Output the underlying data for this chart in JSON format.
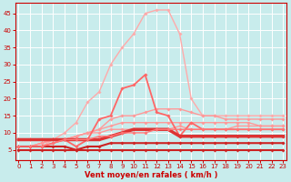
{
  "xlabel": "Vent moyen/en rafales ( km/h )",
  "background_color": "#c8ecec",
  "grid_color": "#ffffff",
  "x_ticks": [
    0,
    1,
    2,
    3,
    4,
    5,
    6,
    7,
    8,
    9,
    10,
    11,
    12,
    13,
    14,
    15,
    16,
    17,
    18,
    19,
    20,
    21,
    22,
    23
  ],
  "ylim": [
    2,
    48
  ],
  "xlim": [
    -0.3,
    23.3
  ],
  "y_ticks": [
    5,
    10,
    15,
    20,
    25,
    30,
    35,
    40,
    45
  ],
  "lines": [
    {
      "color": "#ffaaaa",
      "y": [
        6,
        6,
        6,
        8,
        10,
        13,
        19,
        22,
        30,
        35,
        39,
        45,
        46,
        46,
        39,
        20,
        15,
        15,
        15,
        15,
        15,
        15,
        15,
        15
      ],
      "lw": 1.0
    },
    {
      "color": "#ff9999",
      "y": [
        6,
        6,
        7,
        8,
        8,
        9,
        10,
        11,
        14,
        15,
        15,
        16,
        17,
        17,
        17,
        16,
        15,
        15,
        14,
        14,
        14,
        14,
        14,
        14
      ],
      "lw": 1.0
    },
    {
      "color": "#ff9999",
      "y": [
        6,
        6,
        7,
        8,
        8,
        9,
        10,
        11,
        12,
        13,
        13,
        13,
        13,
        13,
        13,
        13,
        13,
        13,
        13,
        13,
        13,
        12,
        12,
        12
      ],
      "lw": 1.0
    },
    {
      "color": "#ff9999",
      "y": [
        6,
        6,
        7,
        8,
        8,
        9,
        10,
        10,
        11,
        11,
        11,
        11,
        11,
        11,
        12,
        11,
        11,
        11,
        11,
        12,
        12,
        12,
        12,
        12
      ],
      "lw": 1.0
    },
    {
      "color": "#ff6666",
      "y": [
        6,
        6,
        6,
        7,
        8,
        6,
        8,
        14,
        15,
        23,
        24,
        27,
        16,
        15,
        9,
        13,
        11,
        11,
        11,
        11,
        11,
        11,
        11,
        11
      ],
      "lw": 1.3
    },
    {
      "color": "#dd3333",
      "y": [
        8,
        8,
        8,
        8,
        8,
        8,
        8,
        8,
        9,
        10,
        11,
        11,
        11,
        11,
        9,
        9,
        9,
        9,
        9,
        9,
        9,
        9,
        9,
        9
      ],
      "lw": 2.5
    },
    {
      "color": "#cc2222",
      "y": [
        6,
        6,
        6,
        6,
        6,
        5,
        6,
        6,
        7,
        7,
        7,
        7,
        7,
        7,
        7,
        7,
        7,
        7,
        7,
        7,
        7,
        7,
        7,
        7
      ],
      "lw": 1.5
    },
    {
      "color": "#cc2222",
      "y": [
        5,
        5,
        5,
        5,
        5,
        5,
        5,
        5,
        5,
        5,
        5,
        5,
        5,
        5,
        5,
        5,
        5,
        5,
        5,
        5,
        5,
        5,
        5,
        5
      ],
      "lw": 1.5
    },
    {
      "color": "#ff7777",
      "y": [
        6,
        6,
        6,
        7,
        8,
        8,
        8,
        9,
        9,
        10,
        10,
        10,
        11,
        11,
        11,
        11,
        11,
        11,
        11,
        11,
        11,
        11,
        11,
        11
      ],
      "lw": 1.0
    }
  ],
  "marker": "D",
  "marker_size": 1.8,
  "tick_fontsize": 5.0,
  "label_fontsize": 6.0
}
